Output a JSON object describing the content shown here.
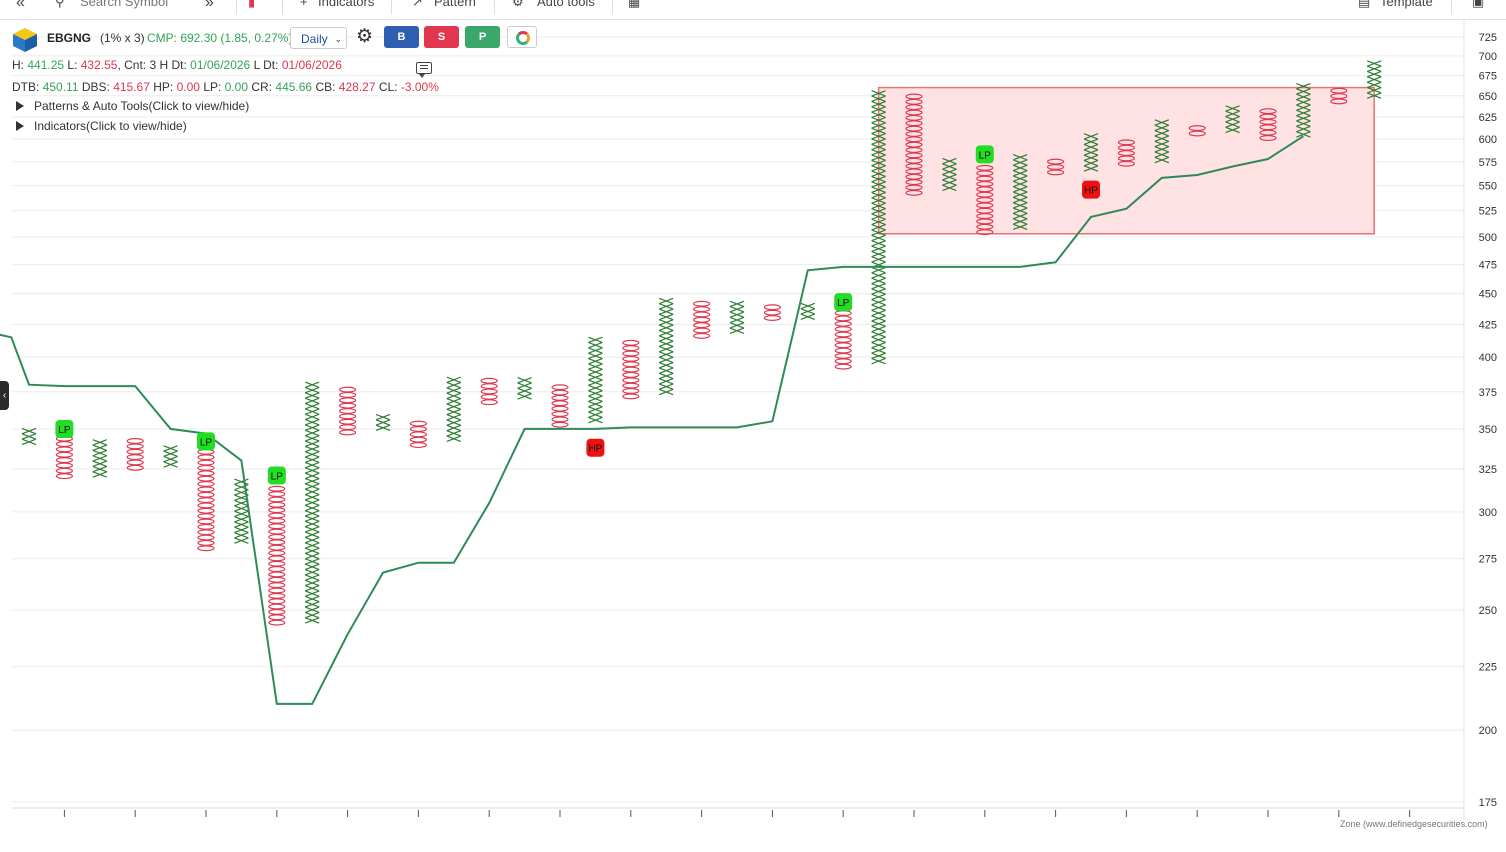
{
  "toolbar": {
    "search_placeholder": "Search Symbol",
    "indicators_label": "Indicators",
    "pattern_label": "Pattern",
    "auto_tools_label": "Auto tools",
    "template_label": "Template"
  },
  "header": {
    "symbol": "EBGNG",
    "box_size": "(1% x 3)",
    "cmp": "CMP: 692.30 (1.85, 0.27%)",
    "timeframe": "Daily",
    "buy_label": "B",
    "sell_label": "S",
    "p_label": "P"
  },
  "stats1": {
    "h_label": "H:",
    "h_value": "441.25",
    "l_label": "L:",
    "l_value": "432.55",
    "cnt": "Cnt: 3 H",
    "dt_label": "Dt:",
    "dt_value": "01/06/2026",
    "ldt_label": "L Dt:",
    "ldt_value": "01/06/2026"
  },
  "stats2": {
    "dtb_label": "DTB:",
    "dtb_value": "450.11",
    "dbs_label": "DBS:",
    "dbs_value": "415.67",
    "hp_label": "HP:",
    "hp_value": "0.00",
    "lp_label": "LP:",
    "lp_value": "0.00",
    "cr_label": "CR:",
    "cr_value": "445.66",
    "cb_label": "CB:",
    "cb_value": "428.27",
    "cl_label": "CL:",
    "cl_value": "-3.00%"
  },
  "toggles": {
    "patterns": "Patterns & Auto Tools(Click to view/hide)",
    "indicators": "Indicators(Click to view/hide)"
  },
  "watermark": "Zone (www.definedgesecurities.com)",
  "colors": {
    "x_color": "#2e7d32",
    "o_color": "#e0364e",
    "line_color": "#2e8b57",
    "zone_fill": "#ffe2e4",
    "zone_border": "#e57373",
    "lp_badge": "#22dd22",
    "hp_badge": "#ee1111"
  },
  "chart_data": {
    "type": "point-and-figure",
    "box_size_pct": 1,
    "reversal": 3,
    "y_scale": "log",
    "ylim": [
      175,
      725
    ],
    "y_ticks": [
      725,
      700,
      675,
      650,
      625,
      600,
      575,
      550,
      525,
      500,
      475,
      450,
      425,
      400,
      375,
      350,
      325,
      300,
      275,
      250,
      225,
      200,
      175
    ],
    "columns": [
      {
        "type": "X",
        "low": 340,
        "high": 348
      },
      {
        "type": "O",
        "low": 319,
        "high": 347
      },
      {
        "type": "X",
        "low": 320,
        "high": 342
      },
      {
        "type": "O",
        "low": 324,
        "high": 341
      },
      {
        "type": "X",
        "low": 326,
        "high": 337
      },
      {
        "type": "O",
        "low": 279,
        "high": 335
      },
      {
        "type": "X",
        "low": 283,
        "high": 318
      },
      {
        "type": "O",
        "low": 243,
        "high": 313
      },
      {
        "type": "X",
        "low": 244,
        "high": 381
      },
      {
        "type": "O",
        "low": 346,
        "high": 377
      },
      {
        "type": "X",
        "low": 349,
        "high": 357
      },
      {
        "type": "O",
        "low": 338,
        "high": 354
      },
      {
        "type": "X",
        "low": 342,
        "high": 383
      },
      {
        "type": "O",
        "low": 366,
        "high": 381
      },
      {
        "type": "X",
        "low": 370,
        "high": 384
      },
      {
        "type": "O",
        "low": 351,
        "high": 380
      },
      {
        "type": "X",
        "low": 354,
        "high": 415
      },
      {
        "type": "O",
        "low": 370,
        "high": 412
      },
      {
        "type": "X",
        "low": 373,
        "high": 444
      },
      {
        "type": "O",
        "low": 414,
        "high": 440
      },
      {
        "type": "X",
        "low": 418,
        "high": 440
      },
      {
        "type": "O",
        "low": 428,
        "high": 437
      },
      {
        "type": "X",
        "low": 429,
        "high": 440
      },
      {
        "type": "O",
        "low": 391,
        "high": 438
      },
      {
        "type": "X",
        "low": 395,
        "high": 654
      },
      {
        "type": "O",
        "low": 540,
        "high": 651
      },
      {
        "type": "X",
        "low": 545,
        "high": 575
      },
      {
        "type": "O",
        "low": 502,
        "high": 570
      },
      {
        "type": "X",
        "low": 507,
        "high": 580
      },
      {
        "type": "O",
        "low": 561,
        "high": 574
      },
      {
        "type": "X",
        "low": 565,
        "high": 603
      },
      {
        "type": "O",
        "low": 570,
        "high": 598
      },
      {
        "type": "X",
        "low": 574,
        "high": 620
      },
      {
        "type": "O",
        "low": 603,
        "high": 614
      },
      {
        "type": "X",
        "low": 607,
        "high": 633
      },
      {
        "type": "O",
        "low": 598,
        "high": 629
      },
      {
        "type": "X",
        "low": 602,
        "high": 660
      },
      {
        "type": "O",
        "low": 640,
        "high": 656
      },
      {
        "type": "X",
        "low": 647,
        "high": 692
      }
    ],
    "line_series": {
      "name": "",
      "points": [
        [
          -1,
          418
        ],
        [
          -0.5,
          415
        ],
        [
          0,
          380
        ],
        [
          1,
          379
        ],
        [
          2,
          379
        ],
        [
          3,
          379
        ],
        [
          4,
          350
        ],
        [
          5,
          347
        ],
        [
          6,
          330
        ],
        [
          7,
          210
        ],
        [
          8,
          210
        ],
        [
          9,
          239
        ],
        [
          10,
          268
        ],
        [
          11,
          273
        ],
        [
          12,
          273
        ],
        [
          13,
          305
        ],
        [
          14,
          350
        ],
        [
          15,
          350
        ],
        [
          16,
          350
        ],
        [
          17,
          351
        ],
        [
          18,
          351
        ],
        [
          19,
          351
        ],
        [
          20,
          351
        ],
        [
          21,
          355
        ],
        [
          22,
          470
        ],
        [
          23,
          473
        ],
        [
          24,
          473
        ],
        [
          25,
          473
        ],
        [
          26,
          473
        ],
        [
          27,
          473
        ],
        [
          28,
          473
        ],
        [
          29,
          477
        ],
        [
          30,
          519
        ],
        [
          31,
          527
        ],
        [
          32,
          558
        ],
        [
          33,
          561
        ],
        [
          34,
          570
        ],
        [
          35,
          578
        ],
        [
          36,
          603
        ]
      ]
    },
    "zone": {
      "col_start": 24,
      "col_end": 38,
      "low": 503,
      "high": 660
    },
    "badges": [
      {
        "label": "LP",
        "col": 1,
        "value": 350
      },
      {
        "label": "LP",
        "col": 5,
        "value": 342
      },
      {
        "label": "LP",
        "col": 7,
        "value": 321
      },
      {
        "label": "HP",
        "col": 16,
        "value": 338
      },
      {
        "label": "LP",
        "col": 23,
        "value": 443
      },
      {
        "label": "LP",
        "col": 27,
        "value": 583
      },
      {
        "label": "HP",
        "col": 30,
        "value": 546
      }
    ]
  }
}
